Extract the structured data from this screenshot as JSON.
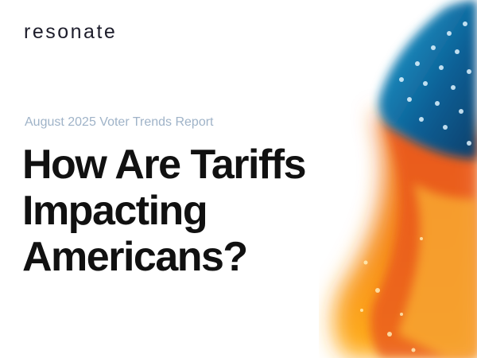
{
  "header": {
    "logo": "resonate"
  },
  "cover": {
    "subtitle": "August 2025 Voter Trends Report",
    "title_lines": [
      "How Are Tariffs",
      "Impacting",
      "Americans?"
    ]
  }
}
